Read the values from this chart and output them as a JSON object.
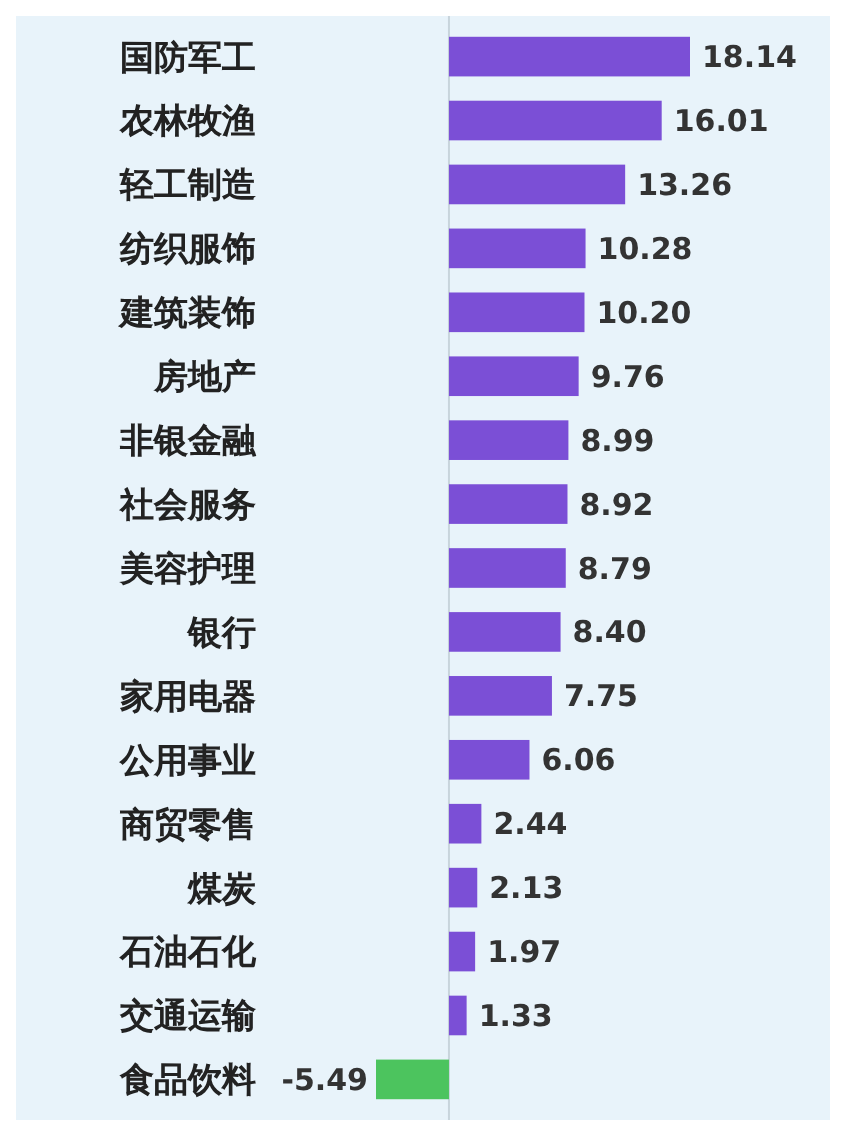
{
  "chart_data": {
    "type": "bar",
    "orientation": "horizontal",
    "value_labels": [
      "18.14",
      "16.01",
      "13.26",
      "10.28",
      "10.20",
      "9.76",
      "8.99",
      "8.92",
      "8.79",
      "8.40",
      "7.75",
      "6.06",
      "2.44",
      "2.13",
      "1.97",
      "1.33",
      "-5.49"
    ],
    "categories": [
      "国防军工",
      "农林牧渔",
      "轻工制造",
      "纺织服饰",
      "建筑装饰",
      "房地产",
      "非银金融",
      "社会服务",
      "美容护理",
      "银行",
      "家用电器",
      "公用事业",
      "商贸零售",
      "煤炭",
      "石油石化",
      "交通运输",
      "食品饮料"
    ],
    "values": [
      18.14,
      16.01,
      13.26,
      10.28,
      10.2,
      9.76,
      8.99,
      8.92,
      8.79,
      8.4,
      7.75,
      6.06,
      2.44,
      2.13,
      1.97,
      1.33,
      -5.49
    ],
    "colors": [
      "#7b4fd6",
      "#7b4fd6",
      "#7b4fd6",
      "#7b4fd6",
      "#7b4fd6",
      "#7b4fd6",
      "#7b4fd6",
      "#7b4fd6",
      "#7b4fd6",
      "#7b4fd6",
      "#7b4fd6",
      "#7b4fd6",
      "#7b4fd6",
      "#7b4fd6",
      "#7b4fd6",
      "#7b4fd6",
      "#4cc45e"
    ]
  }
}
